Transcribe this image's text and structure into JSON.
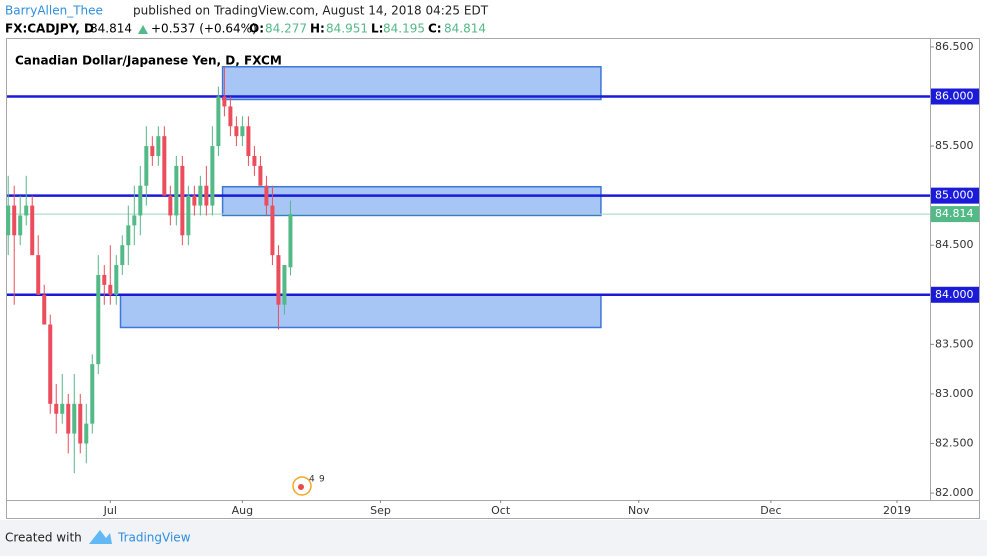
{
  "header": {
    "author": "BarryAllen_Thee",
    "published": "published on TradingView.com, August 14, 2018 04:25 EDT",
    "symbol": "FX:CADJPY, D",
    "change": "+0.537 (+0.64%)",
    "o": "O:",
    "h": "H:",
    "l": "L:",
    "c": "C:"
  },
  "footer": {
    "created": "Created with",
    "brand": "TradingView"
  },
  "chart_data": {
    "type": "candlestick",
    "title": "Canadian Dollar/Japanese Yen, D, FXCM",
    "up_color": "#53b987",
    "down_color": "#eb4d5c",
    "series": {
      "open": [
        84.6,
        84.9,
        84.6,
        84.8,
        84.9,
        84.4,
        84.0,
        83.7,
        82.9,
        82.8,
        82.9,
        82.6,
        82.9,
        82.5,
        82.7,
        83.3,
        84.2,
        84.1,
        84.0,
        84.3,
        84.5,
        84.7,
        84.8,
        85.1,
        85.5,
        85.4,
        85.6,
        85.0,
        84.8,
        85.3,
        84.6,
        85.0,
        84.9,
        85.1,
        84.9,
        85.5,
        86.0,
        85.9,
        85.7,
        85.6,
        85.7,
        85.4,
        85.3,
        85.1,
        84.9,
        84.4,
        83.9,
        84.277
      ],
      "high": [
        85.2,
        85.1,
        85.0,
        85.2,
        85.0,
        84.6,
        84.1,
        83.8,
        83.1,
        83.2,
        83.0,
        83.2,
        83.0,
        82.9,
        83.4,
        84.4,
        84.3,
        84.5,
        84.4,
        84.6,
        84.9,
        85.1,
        85.3,
        85.7,
        85.6,
        85.7,
        85.7,
        85.1,
        85.4,
        85.4,
        85.1,
        85.1,
        85.2,
        85.3,
        85.7,
        86.1,
        86.3,
        86.0,
        85.8,
        85.8,
        85.8,
        85.5,
        85.4,
        85.2,
        85.1,
        84.5,
        84.3,
        84.951
      ],
      "low": [
        84.4,
        83.9,
        84.5,
        84.7,
        84.4,
        84.0,
        83.7,
        82.8,
        82.6,
        82.7,
        82.4,
        82.2,
        82.4,
        82.3,
        82.6,
        83.2,
        83.9,
        83.9,
        83.9,
        84.2,
        84.3,
        84.5,
        84.6,
        84.9,
        85.3,
        85.3,
        85.0,
        84.7,
        84.7,
        84.5,
        84.5,
        84.8,
        84.8,
        84.8,
        84.8,
        85.4,
        85.8,
        85.6,
        85.5,
        85.5,
        85.3,
        85.2,
        85.1,
        84.8,
        84.3,
        83.65,
        83.8,
        84.195
      ],
      "close": [
        84.9,
        84.6,
        84.8,
        84.9,
        84.4,
        84.0,
        83.7,
        82.9,
        82.8,
        82.9,
        82.6,
        82.9,
        82.5,
        82.7,
        83.3,
        84.2,
        84.1,
        84.0,
        84.3,
        84.5,
        84.7,
        84.8,
        85.1,
        85.5,
        85.4,
        85.6,
        85.0,
        84.8,
        85.3,
        84.6,
        85.0,
        84.9,
        85.1,
        84.9,
        85.5,
        86.0,
        85.9,
        85.7,
        85.6,
        85.7,
        85.4,
        85.3,
        85.1,
        84.9,
        84.4,
        83.9,
        84.3,
        84.814
      ]
    },
    "xlim": [
      -0.2,
      153.5
    ],
    "xticks": [
      {
        "value": 17,
        "label": "Jul"
      },
      {
        "value": 39,
        "label": "Aug"
      },
      {
        "value": 62,
        "label": "Sep"
      },
      {
        "value": 82,
        "label": "Oct"
      },
      {
        "value": 105,
        "label": "Nov"
      },
      {
        "value": 127,
        "label": "Dec"
      },
      {
        "value": 148,
        "label": "2019"
      }
    ],
    "ylim": [
      81.94,
      86.57
    ],
    "yticks": [
      {
        "value": 82,
        "label": "82.000"
      },
      {
        "value": 82.5,
        "label": "82.500"
      },
      {
        "value": 83,
        "label": "83.000"
      },
      {
        "value": 83.5,
        "label": "83.500"
      },
      {
        "value": 84,
        "label": "84.000"
      },
      {
        "value": 84.5,
        "label": "84.500"
      },
      {
        "value": 85,
        "label": "85.000"
      },
      {
        "value": 85.5,
        "label": "85.500"
      },
      {
        "value": 86,
        "label": "86.000"
      },
      {
        "value": 86.5,
        "label": "86.500"
      }
    ],
    "levels": [
      {
        "value": 86,
        "label": "86.000"
      },
      {
        "value": 85,
        "label": "85.000"
      },
      {
        "value": 84,
        "label": "84.000"
      }
    ],
    "zones": [
      {
        "start": 35.7,
        "end": 98.7,
        "top": 86.3,
        "bottom": 85.97
      },
      {
        "start": 35.7,
        "end": 98.7,
        "top": 85.09,
        "bottom": 84.8
      },
      {
        "start": 18.7,
        "end": 98.7,
        "top": 84.0,
        "bottom": 83.67
      }
    ],
    "events": [
      "4",
      "9"
    ]
  }
}
